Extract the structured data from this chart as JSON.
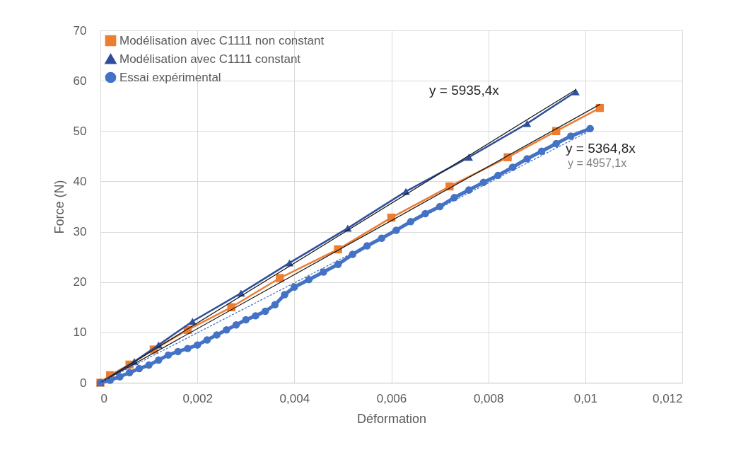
{
  "chart_data": {
    "type": "line",
    "xlabel": "Déformation",
    "ylabel": "Force (N)",
    "xlim": [
      0,
      0.012
    ],
    "ylim": [
      0,
      70
    ],
    "xticks": [
      0,
      {
        "value": 0.002,
        "label": "0,002"
      },
      {
        "value": 0.004,
        "label": "0,004"
      },
      {
        "value": 0.006,
        "label": "0,006"
      },
      {
        "value": 0.008,
        "label": "0,008"
      },
      {
        "value": 0.01,
        "label": "0,01"
      },
      {
        "value": 0.012,
        "label": "0,012"
      }
    ],
    "yticks": [
      0,
      10,
      20,
      30,
      40,
      50,
      60,
      70
    ],
    "grid": true,
    "legend": "top left",
    "series": [
      {
        "name": "Modélisation avec C1111 non constant",
        "color": "#ed7d31",
        "marker": "square",
        "x": [
          0,
          0.0002,
          0.0006,
          0.0011,
          0.0018,
          0.0027,
          0.0037,
          0.0049,
          0.006,
          0.0072,
          0.0084,
          0.0094,
          0.0103
        ],
        "values": [
          0,
          1.5,
          3.6,
          6.6,
          10.5,
          15,
          20.8,
          26.5,
          32.8,
          39,
          44.8,
          50,
          54.6
        ]
      },
      {
        "name": "Modélisation avec C1111 constant",
        "color": "#2f4f9a",
        "marker": "triangle",
        "x": [
          0,
          0.0007,
          0.0012,
          0.0019,
          0.0029,
          0.0039,
          0.0051,
          0.0063,
          0.0076,
          0.0088,
          0.0098
        ],
        "values": [
          0,
          4.2,
          7.5,
          12.2,
          17.8,
          23.8,
          30.7,
          38,
          44.8,
          51.5,
          57.8
        ]
      },
      {
        "name": "Essai expérimental",
        "color": "#4472c4",
        "marker": "circle",
        "x": [
          0,
          0.0002,
          0.0004,
          0.0006,
          0.0008,
          0.001,
          0.0012,
          0.0014,
          0.0016,
          0.0018,
          0.002,
          0.0022,
          0.0024,
          0.0026,
          0.0028,
          0.003,
          0.0032,
          0.0034,
          0.0036,
          0.0038,
          0.004,
          0.0043,
          0.0046,
          0.0049,
          0.0052,
          0.0055,
          0.0058,
          0.0061,
          0.0064,
          0.0067,
          0.007,
          0.0073,
          0.0076,
          0.0079,
          0.0082,
          0.0085,
          0.0088,
          0.0091,
          0.0094,
          0.0097,
          0.0101
        ],
        "values": [
          0,
          0.5,
          1.2,
          2,
          2.8,
          3.5,
          4.5,
          5.5,
          6.2,
          6.8,
          7.5,
          8.5,
          9.5,
          10.5,
          11.5,
          12.5,
          13.3,
          14.2,
          15.5,
          17.5,
          19,
          20.5,
          22,
          23.5,
          25.5,
          27.2,
          28.7,
          30.3,
          32,
          33.6,
          35,
          36.8,
          38.3,
          39.8,
          41.2,
          42.8,
          44.5,
          46,
          47.5,
          49,
          50.5
        ]
      },
      {
        "type": "line",
        "color": "#1a1a1a",
        "marker": "none",
        "x": [
          0,
          0.0098
        ],
        "values": [
          0,
          58.2
        ]
      },
      {
        "type": "line",
        "color": "#1a1a1a",
        "marker": "none",
        "x": [
          0,
          0.0103
        ],
        "values": [
          0,
          55.3
        ]
      },
      {
        "type": "line",
        "color": "#4472c4",
        "marker": "none",
        "line_style": "dotted",
        "x": [
          0,
          0.0101
        ],
        "values": [
          0,
          50.1
        ]
      }
    ],
    "annotations": [
      "y = 5935,4x",
      "y = 5364,8x",
      "y = 4957,1x"
    ]
  }
}
